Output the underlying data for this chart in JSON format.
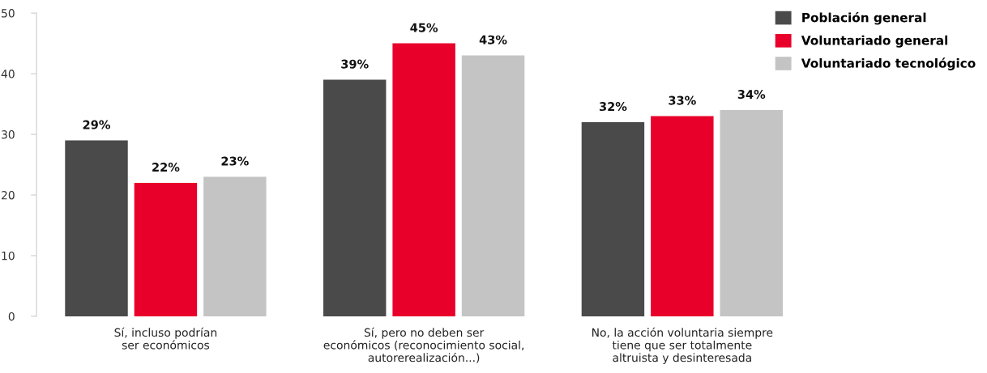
{
  "chart_data": {
    "type": "bar",
    "categories": [
      "Sí, incluso podrían\nser económicos",
      "Sí, pero no deben ser\neconómicos (reconocimiento social,\nautorerealización...)",
      "No, la acción voluntaria siempre\ntiene que ser totalmente\naltruista y desinteresada"
    ],
    "series": [
      {
        "name": "Población general",
        "color": "#4a4a4a",
        "values": [
          29,
          39,
          32
        ],
        "value_labels": [
          "29%",
          "39%",
          "32%"
        ]
      },
      {
        "name": "Voluntariado general",
        "color": "#e8002a",
        "values": [
          22,
          45,
          33
        ],
        "value_labels": [
          "22%",
          "45%",
          "33%"
        ]
      },
      {
        "name": "Voluntariado tecnológico",
        "color": "#c4c4c4",
        "values": [
          23,
          43,
          34
        ],
        "value_labels": [
          "23%",
          "43%",
          "34%"
        ]
      }
    ],
    "ylim": [
      0,
      50
    ],
    "yticks": [
      0,
      10,
      20,
      30,
      40,
      50
    ],
    "grid": false,
    "legend": "top right"
  }
}
